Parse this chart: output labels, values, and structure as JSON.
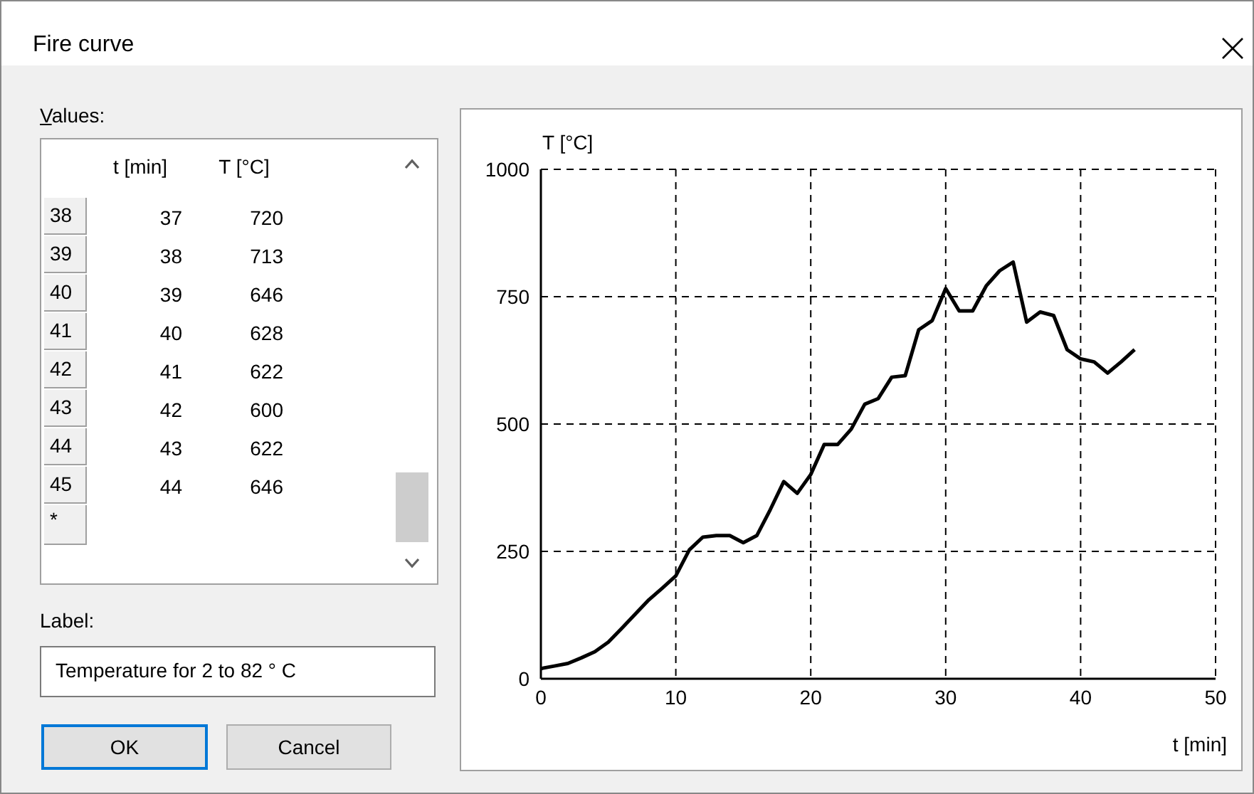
{
  "chart_data": {
    "type": "line",
    "title": "Fire curve",
    "xlabel": "t [min]",
    "ylabel": "T [°C]",
    "x": [
      0,
      1,
      2,
      3,
      4,
      5,
      6,
      7,
      8,
      9,
      10,
      11,
      12,
      13,
      14,
      15,
      16,
      17,
      18,
      19,
      20,
      21,
      22,
      23,
      24,
      25,
      26,
      27,
      28,
      29,
      30,
      31,
      32,
      33,
      34,
      35,
      36,
      37,
      38,
      39,
      40,
      41,
      42,
      43,
      44
    ],
    "series": [
      {
        "color": "#000000",
        "values": [
          20,
          25,
          30,
          41,
          53,
          72,
          99,
          127,
          155,
          178,
          202,
          253,
          278,
          281,
          281,
          267,
          281,
          332,
          387,
          364,
          401,
          460,
          460,
          490,
          539,
          550,
          592,
          595,
          685,
          703,
          766,
          722,
          722,
          771,
          801,
          818,
          700,
          720,
          713,
          646,
          628,
          622,
          600,
          622,
          646
        ]
      }
    ],
    "xlim": [
      0,
      50
    ],
    "xticks": [
      0,
      10,
      20,
      30,
      40,
      50
    ],
    "ylim": [
      0,
      1000
    ],
    "yticks": [
      0,
      250,
      500,
      750,
      1000
    ],
    "grid": true,
    "marker": "none",
    "line_style": "solid",
    "annotations": [
      "Values:",
      "t [min]",
      "T [°C]",
      "38",
      "37",
      "720",
      "39",
      "38",
      "713",
      "40",
      "39",
      "646",
      "41",
      "40",
      "628",
      "42",
      "41",
      "622",
      "43",
      "42",
      "600",
      "44",
      "43",
      "622",
      "45",
      "44",
      "646",
      "*",
      "Label:",
      "Temperature for 2 to 82 ° C",
      "OK",
      "Cancel"
    ]
  }
}
